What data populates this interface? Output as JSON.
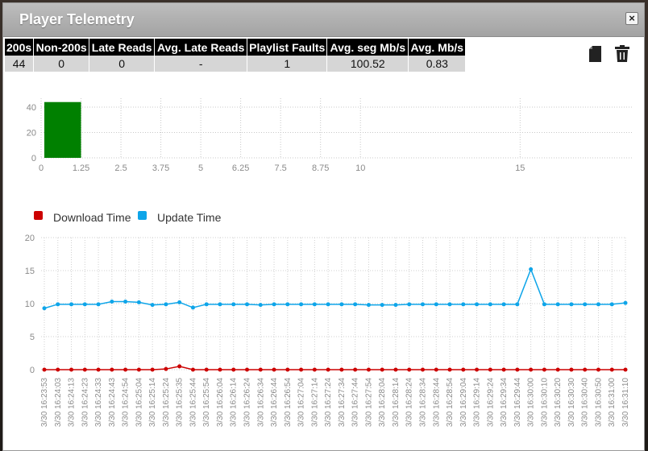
{
  "window": {
    "title": "Player Telemetry",
    "close_label": "×"
  },
  "stats": {
    "headers": [
      "200s",
      "Non-200s",
      "Late Reads",
      "Avg. Late Reads",
      "Playlist Faults",
      "Avg. seg Mb/s",
      "Avg. Mb/s"
    ],
    "values": [
      "44",
      "0",
      "0",
      "-",
      "1",
      "100.52",
      "0.83"
    ]
  },
  "toolbar": {
    "copy_icon": "copy-icon",
    "trash_icon": "trash-icon"
  },
  "chart_data": [
    {
      "type": "bar",
      "title": "",
      "xlim": [
        0,
        18.5
      ],
      "ylim": [
        0,
        47
      ],
      "x_ticks": [
        "0",
        "1.25",
        "2.5",
        "3.75",
        "5",
        "6.25",
        "7.5",
        "8.75",
        "10",
        "15"
      ],
      "y_ticks": [
        "0",
        "20",
        "40"
      ],
      "bars": [
        {
          "x_start": 0,
          "x_end": 1.25,
          "value": 44,
          "color": "#008000"
        }
      ]
    },
    {
      "type": "line",
      "ylim": [
        0,
        20
      ],
      "y_ticks": [
        "0",
        "5",
        "10",
        "15",
        "20"
      ],
      "legend_position": "top-left",
      "x": [
        "3/30 16:23:53",
        "3/30 16:24:03",
        "3/30 16:24:13",
        "3/30 16:24:23",
        "3/30 16:24:33",
        "3/30 16:24:43",
        "3/30 16:24:54",
        "3/30 16:25:04",
        "3/30 16:25:14",
        "3/30 16:25:24",
        "3/30 16:25:35",
        "3/30 16:25:44",
        "3/30 16:25:54",
        "3/30 16:26:04",
        "3/30 16:26:14",
        "3/30 16:26:24",
        "3/30 16:26:34",
        "3/30 16:26:44",
        "3/30 16:26:54",
        "3/30 16:27:04",
        "3/30 16:27:14",
        "3/30 16:27:24",
        "3/30 16:27:34",
        "3/30 16:27:44",
        "3/30 16:27:54",
        "3/30 16:28:04",
        "3/30 16:28:14",
        "3/30 16:28:24",
        "3/30 16:28:34",
        "3/30 16:28:44",
        "3/30 16:28:54",
        "3/30 16:29:04",
        "3/30 16:29:14",
        "3/30 16:29:24",
        "3/30 16:29:34",
        "3/30 16:29:44",
        "3/30 16:30:00",
        "3/30 16:30:10",
        "3/30 16:30:20",
        "3/30 16:30:30",
        "3/30 16:30:40",
        "3/30 16:30:50",
        "3/30 16:31:00",
        "3/30 16:31:10"
      ],
      "series": [
        {
          "name": "Download Time",
          "color": "#cc0000",
          "values": [
            0,
            0,
            0,
            0,
            0,
            0,
            0,
            0,
            0,
            0.1,
            0.5,
            0,
            0,
            0,
            0,
            0,
            0,
            0,
            0,
            0,
            0,
            0,
            0,
            0,
            0,
            0,
            0,
            0,
            0,
            0,
            0,
            0,
            0,
            0,
            0,
            0,
            0,
            0,
            0,
            0,
            0,
            0,
            0,
            0
          ]
        },
        {
          "name": "Update Time",
          "color": "#0ea5e9",
          "values": [
            9.3,
            9.9,
            9.9,
            9.9,
            9.9,
            10.3,
            10.3,
            10.2,
            9.8,
            9.9,
            10.2,
            9.4,
            9.9,
            9.9,
            9.9,
            9.9,
            9.8,
            9.9,
            9.9,
            9.9,
            9.9,
            9.9,
            9.9,
            9.9,
            9.8,
            9.8,
            9.8,
            9.9,
            9.9,
            9.9,
            9.9,
            9.9,
            9.9,
            9.9,
            9.9,
            9.9,
            15.2,
            9.9,
            9.9,
            9.9,
            9.9,
            9.9,
            9.9,
            10.1
          ]
        }
      ]
    }
  ]
}
